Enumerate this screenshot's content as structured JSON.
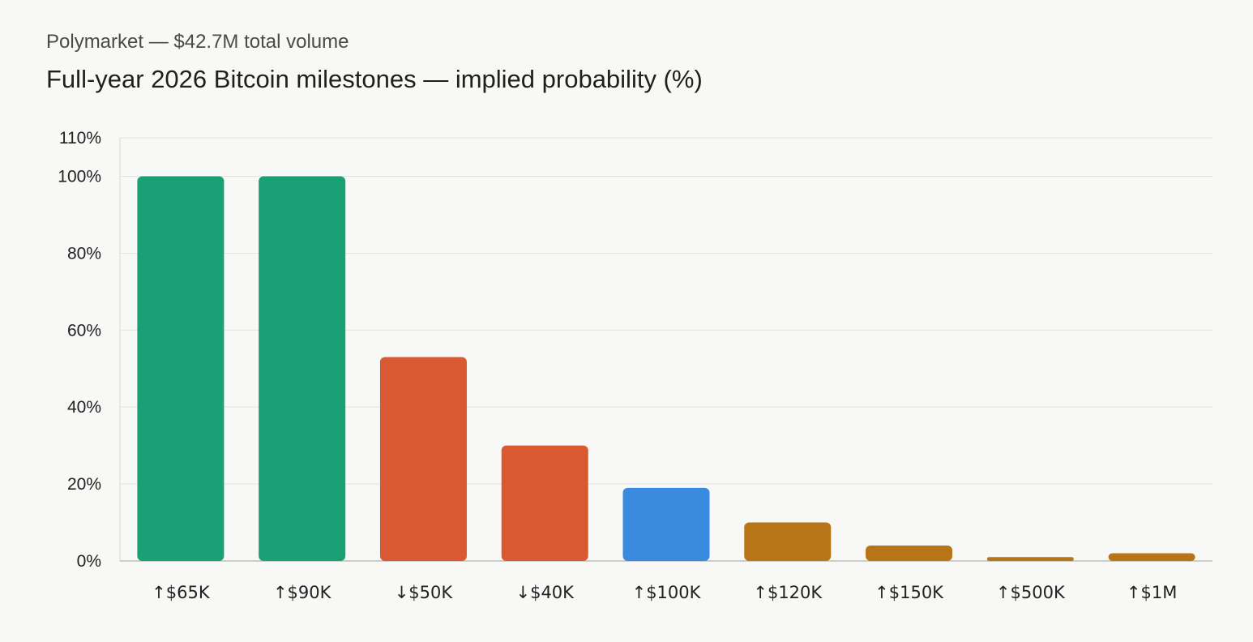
{
  "header": {
    "subtitle": "Polymarket — $42.7M total volume",
    "title": "Full-year 2026 Bitcoin milestones — implied probability (%)"
  },
  "chart_data": {
    "type": "bar",
    "title": "Full-year 2026 Bitcoin milestones — implied probability (%)",
    "subtitle": "Polymarket — $42.7M total volume",
    "xlabel": "",
    "ylabel": "",
    "ylim": [
      0,
      110
    ],
    "yticks": [
      0,
      20,
      40,
      60,
      80,
      100,
      110
    ],
    "ytick_labels": [
      "0%",
      "20%",
      "40%",
      "60%",
      "80%",
      "100%",
      "110%"
    ],
    "grid": true,
    "categories": [
      "↑$65K",
      "↑$90K",
      "↓$50K",
      "↓$40K",
      "↑$100K",
      "↑$120K",
      "↑$150K",
      "↑$500K",
      "↑$1M"
    ],
    "values": [
      100,
      100,
      53,
      30,
      19,
      10,
      4,
      1,
      2
    ],
    "colors": [
      "#1ba076",
      "#1ba076",
      "#d95a32",
      "#d95a32",
      "#3a8be0",
      "#b87518",
      "#b87518",
      "#b87518",
      "#b87518"
    ]
  }
}
